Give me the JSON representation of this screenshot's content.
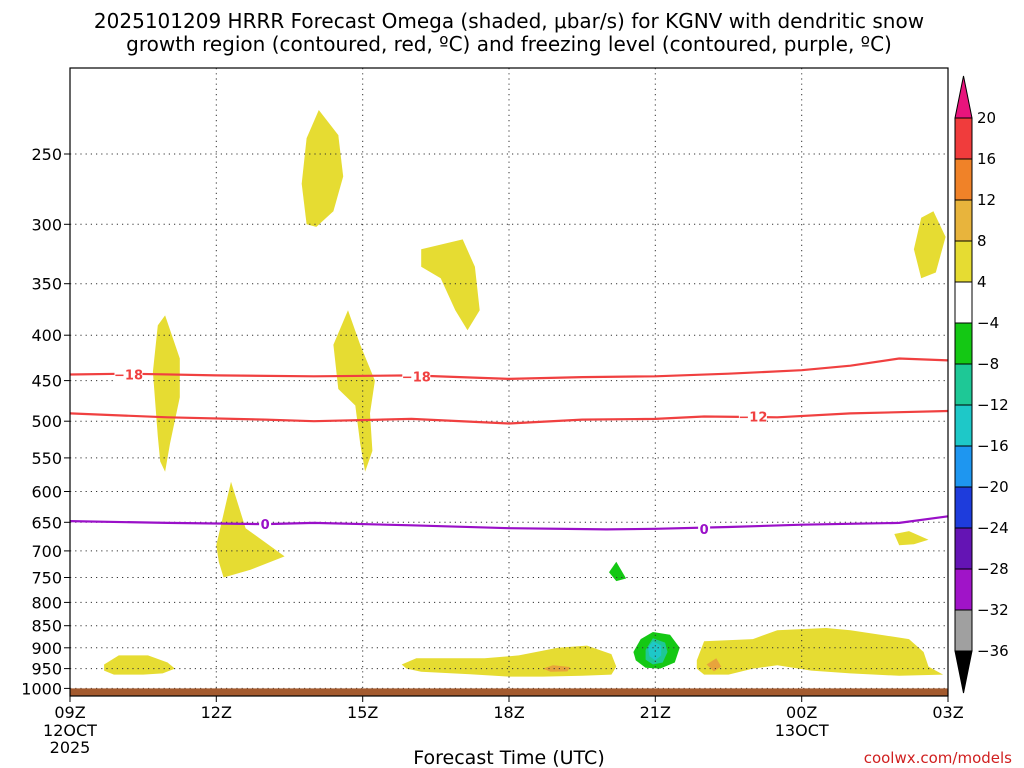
{
  "chart_data": {
    "type": "heatmap",
    "title_lines": [
      "2025101209 HRRR Forecast Omega (shaded, μbar/s) for KGNV with dendritic snow",
      "growth region (contoured, red, ºC) and freezing level (contoured, purple, ºC)"
    ],
    "xlabel": "Forecast Time (UTC)",
    "ylabel": "",
    "x_ticks": [
      {
        "hour": 0,
        "label": "09Z",
        "sub": [
          "12OCT",
          "2025"
        ]
      },
      {
        "hour": 3,
        "label": "12Z",
        "sub": []
      },
      {
        "hour": 6,
        "label": "15Z",
        "sub": []
      },
      {
        "hour": 9,
        "label": "18Z",
        "sub": []
      },
      {
        "hour": 12,
        "label": "21Z",
        "sub": []
      },
      {
        "hour": 15,
        "label": "00Z",
        "sub": [
          "13OCT"
        ]
      },
      {
        "hour": 18,
        "label": "03Z",
        "sub": []
      }
    ],
    "y_levels_hpa": [
      250,
      300,
      350,
      400,
      450,
      500,
      550,
      600,
      650,
      700,
      750,
      800,
      850,
      900,
      950,
      1000
    ],
    "y_range_hpa": [
      200,
      1020
    ],
    "colorbar": {
      "units": "μbar/s",
      "labels": [
        "20",
        "16",
        "12",
        "8",
        "4",
        "−4",
        "−8",
        "−12",
        "−16",
        "−20",
        "−24",
        "−28",
        "−32",
        "−36"
      ],
      "colors": [
        "#e8147c",
        "#f03c3c",
        "#f08228",
        "#e8b43c",
        "#e6dc32",
        "#ffffff",
        "#14c814",
        "#1ec896",
        "#1ec8c8",
        "#1e96f0",
        "#1e3cdc",
        "#6414b4",
        "#a014c8",
        "#a0a0a0",
        "#000000"
      ]
    },
    "contours": [
      {
        "name": "-18 ºC isotherm",
        "label": "−18",
        "color": "#f04040",
        "points": [
          [
            0,
            443
          ],
          [
            1.2,
            442
          ],
          [
            3,
            444
          ],
          [
            5,
            445
          ],
          [
            7,
            444
          ],
          [
            9,
            448
          ],
          [
            10.5,
            446
          ],
          [
            12,
            445
          ],
          [
            13.5,
            442
          ],
          [
            15,
            438
          ],
          [
            16,
            433
          ],
          [
            17,
            425
          ],
          [
            18,
            427
          ]
        ],
        "label_at": [
          [
            1.2,
            443
          ],
          [
            7.1,
            445
          ]
        ]
      },
      {
        "name": "-12 ºC isotherm",
        "label": "−12",
        "color": "#f04040",
        "points": [
          [
            0,
            490
          ],
          [
            2,
            495
          ],
          [
            4,
            498
          ],
          [
            5,
            500
          ],
          [
            7,
            497
          ],
          [
            9,
            503
          ],
          [
            10.5,
            498
          ],
          [
            12,
            497
          ],
          [
            13,
            494
          ],
          [
            14.5,
            495
          ],
          [
            16,
            490
          ],
          [
            18,
            487
          ]
        ],
        "label_at": [
          [
            14,
            494
          ]
        ]
      },
      {
        "name": "0 ºC freezing level",
        "label": "0",
        "color": "#9a10c8",
        "points": [
          [
            0,
            648
          ],
          [
            2,
            651
          ],
          [
            4,
            653
          ],
          [
            5,
            651
          ],
          [
            7,
            655
          ],
          [
            9,
            660
          ],
          [
            11,
            662
          ],
          [
            12,
            661
          ],
          [
            13.5,
            658
          ],
          [
            15,
            654
          ],
          [
            17,
            651
          ],
          [
            18,
            640
          ]
        ],
        "label_at": [
          [
            4,
            653
          ],
          [
            13,
            661
          ]
        ]
      }
    ],
    "regions": [
      {
        "name": "omega-yellow-250",
        "bin": "4 to 8",
        "color": "#e6dc32",
        "pts": [
          [
            4.85,
            300
          ],
          [
            4.75,
            270
          ],
          [
            4.85,
            240
          ],
          [
            5.1,
            223
          ],
          [
            5.5,
            238
          ],
          [
            5.6,
            265
          ],
          [
            5.4,
            290
          ],
          [
            5.05,
            302
          ]
        ]
      },
      {
        "name": "omega-yellow-350",
        "bin": "4 to 8",
        "color": "#e6dc32",
        "pts": [
          [
            7.2,
            320
          ],
          [
            8.05,
            312
          ],
          [
            8.3,
            335
          ],
          [
            8.4,
            375
          ],
          [
            8.15,
            395
          ],
          [
            7.9,
            375
          ],
          [
            7.6,
            345
          ],
          [
            7.2,
            335
          ]
        ]
      },
      {
        "name": "omega-yellow-310",
        "bin": "4 to 8",
        "color": "#e6dc32",
        "pts": [
          [
            17.7,
            290
          ],
          [
            17.95,
            310
          ],
          [
            17.75,
            340
          ],
          [
            17.45,
            345
          ],
          [
            17.3,
            320
          ],
          [
            17.45,
            295
          ]
        ]
      },
      {
        "name": "omega-yellow-450",
        "bin": "4 to 8",
        "color": "#e6dc32",
        "pts": [
          [
            1.8,
            520
          ],
          [
            1.7,
            440
          ],
          [
            1.8,
            390
          ],
          [
            1.95,
            380
          ],
          [
            2.25,
            425
          ],
          [
            2.25,
            470
          ],
          [
            2.05,
            530
          ],
          [
            1.95,
            570
          ],
          [
            1.85,
            555
          ]
        ]
      },
      {
        "name": "omega-yellow-440",
        "bin": "4 to 8",
        "color": "#e6dc32",
        "pts": [
          [
            5.5,
            460
          ],
          [
            5.4,
            410
          ],
          [
            5.7,
            375
          ],
          [
            5.95,
            410
          ],
          [
            6.25,
            450
          ],
          [
            6.15,
            490
          ],
          [
            6.2,
            540
          ],
          [
            6.05,
            570
          ],
          [
            5.95,
            530
          ],
          [
            5.85,
            480
          ]
        ]
      },
      {
        "name": "omega-yellow-660",
        "bin": "4 to 8",
        "color": "#e6dc32",
        "pts": [
          [
            3.0,
            690
          ],
          [
            3.3,
            585
          ],
          [
            3.6,
            660
          ],
          [
            4.4,
            710
          ],
          [
            3.7,
            735
          ],
          [
            3.15,
            750
          ],
          [
            3.05,
            720
          ]
        ]
      },
      {
        "name": "omega-yellow-680",
        "bin": "4 to 8",
        "color": "#e6dc32",
        "pts": [
          [
            16.9,
            670
          ],
          [
            17.2,
            665
          ],
          [
            17.6,
            680
          ],
          [
            17.3,
            688
          ],
          [
            17.0,
            690
          ]
        ]
      },
      {
        "name": "omega-green-750",
        "bin": "-8 to -4",
        "color": "#14c814",
        "pts": [
          [
            11.05,
            740
          ],
          [
            11.2,
            720
          ],
          [
            11.4,
            752
          ],
          [
            11.2,
            757
          ]
        ]
      },
      {
        "name": "omega-yellow-950-left",
        "bin": "4 to 8",
        "color": "#e6dc32",
        "pts": [
          [
            0.7,
            940
          ],
          [
            1.0,
            918
          ],
          [
            1.6,
            918
          ],
          [
            2.0,
            935
          ],
          [
            2.15,
            950
          ],
          [
            1.9,
            962
          ],
          [
            1.5,
            965
          ],
          [
            0.9,
            965
          ],
          [
            0.7,
            955
          ]
        ]
      },
      {
        "name": "omega-yellow-940",
        "bin": "4 to 8",
        "color": "#e6dc32",
        "pts": [
          [
            6.8,
            940
          ],
          [
            7.1,
            925
          ],
          [
            8.5,
            925
          ],
          [
            9.2,
            918
          ],
          [
            10.0,
            900
          ],
          [
            10.6,
            895
          ],
          [
            11.1,
            915
          ],
          [
            11.2,
            945
          ],
          [
            11.1,
            965
          ],
          [
            10.5,
            968
          ],
          [
            9.7,
            970
          ],
          [
            9.0,
            970
          ],
          [
            8.2,
            964
          ],
          [
            7.2,
            958
          ],
          [
            6.9,
            950
          ]
        ]
      },
      {
        "name": "omega-green-900",
        "bin": "-8 to -4",
        "color": "#14c814",
        "pts": [
          [
            11.55,
            910
          ],
          [
            11.7,
            880
          ],
          [
            11.95,
            864
          ],
          [
            12.3,
            870
          ],
          [
            12.5,
            900
          ],
          [
            12.4,
            935
          ],
          [
            12.1,
            950
          ],
          [
            11.8,
            948
          ],
          [
            11.6,
            930
          ]
        ]
      },
      {
        "name": "omega-teal-900",
        "bin": "-12 to -8",
        "color": "#1ec896",
        "pts": [
          [
            11.8,
            905
          ],
          [
            11.95,
            878
          ],
          [
            12.2,
            888
          ],
          [
            12.25,
            910
          ],
          [
            12.15,
            935
          ],
          [
            11.95,
            940
          ],
          [
            11.8,
            928
          ]
        ]
      },
      {
        "name": "omega-cyan-900",
        "bin": "-16 to -12",
        "color": "#1ec8c8",
        "pts": [
          [
            11.85,
            900
          ],
          [
            11.95,
            885
          ],
          [
            12.12,
            895
          ],
          [
            12.12,
            918
          ],
          [
            12.0,
            930
          ],
          [
            11.88,
            920
          ]
        ]
      },
      {
        "name": "omega-yellow-900-right",
        "bin": "4 to 8",
        "color": "#e6dc32",
        "pts": [
          [
            12.85,
            930
          ],
          [
            13.0,
            885
          ],
          [
            14.0,
            880
          ],
          [
            14.5,
            860
          ],
          [
            15.5,
            855
          ],
          [
            16.0,
            860
          ],
          [
            17.2,
            880
          ],
          [
            17.5,
            910
          ],
          [
            17.6,
            945
          ],
          [
            17.9,
            965
          ],
          [
            17.0,
            968
          ],
          [
            16.0,
            962
          ],
          [
            15.2,
            955
          ],
          [
            14.5,
            942
          ],
          [
            14.0,
            950
          ],
          [
            13.5,
            965
          ],
          [
            13.0,
            965
          ],
          [
            12.85,
            950
          ]
        ]
      },
      {
        "name": "omega-orange-950",
        "bin": "8 to 12",
        "color": "#e8a43c",
        "pts": [
          [
            9.7,
            950
          ],
          [
            9.9,
            942
          ],
          [
            10.25,
            946
          ],
          [
            10.2,
            957
          ],
          [
            9.85,
            958
          ]
        ]
      },
      {
        "name": "omega-orange-940",
        "bin": "8 to 12",
        "color": "#e8a43c",
        "pts": [
          [
            13.05,
            940
          ],
          [
            13.25,
            925
          ],
          [
            13.35,
            945
          ],
          [
            13.2,
            957
          ]
        ]
      }
    ],
    "terrain": {
      "name": "ground",
      "color": "#a35a2e",
      "from_hpa": 1000
    }
  },
  "watermark": "coolwx.com/models"
}
